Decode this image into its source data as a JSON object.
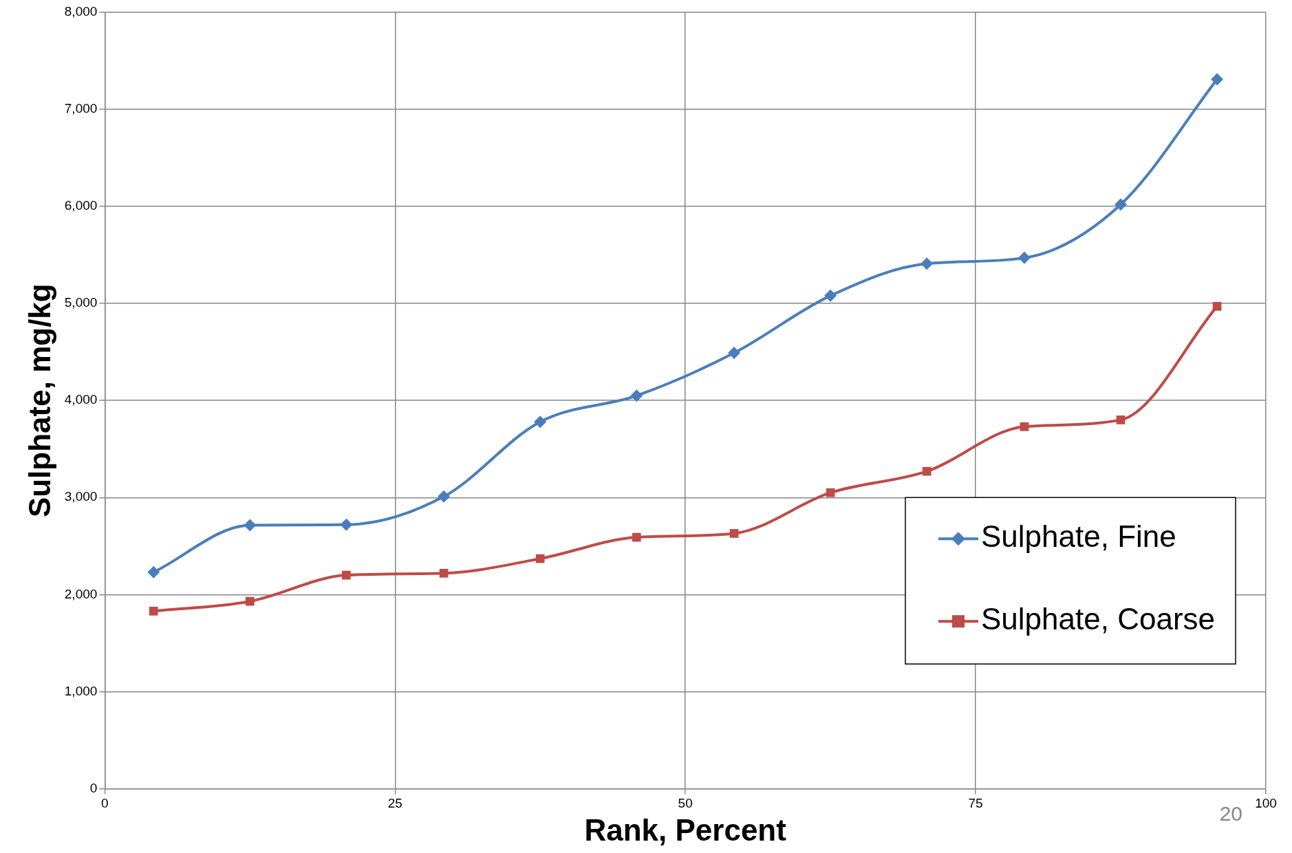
{
  "chart_data": {
    "type": "line",
    "xlabel": "Rank, Percent",
    "ylabel": "Sulphate, mg/kg",
    "x": [
      4.2,
      12.5,
      20.8,
      29.2,
      37.5,
      45.8,
      54.2,
      62.5,
      70.8,
      79.2,
      87.5,
      95.8
    ],
    "series": [
      {
        "name": "Sulphate, Fine",
        "color": "#4a7ebb",
        "marker": "diamond",
        "values": [
          2230,
          2715,
          2720,
          3010,
          3780,
          4050,
          4490,
          5080,
          5410,
          5470,
          6020,
          7310
        ]
      },
      {
        "name": "Sulphate, Coarse",
        "color": "#be4b48",
        "marker": "square",
        "values": [
          1830,
          1930,
          2200,
          2220,
          2370,
          2590,
          2630,
          3050,
          3270,
          3730,
          3800,
          4970
        ]
      }
    ],
    "xlim": [
      0,
      100
    ],
    "xticks": [
      0,
      25,
      50,
      75,
      100
    ],
    "ylim": [
      0,
      8000
    ],
    "yticks": [
      {
        "value": 0,
        "label": "0"
      },
      {
        "value": 1000,
        "label": "1,000"
      },
      {
        "value": 2000,
        "label": "2,000"
      },
      {
        "value": 3000,
        "label": "3,000"
      },
      {
        "value": 4000,
        "label": "4,000"
      },
      {
        "value": 5000,
        "label": "5,000"
      },
      {
        "value": 6000,
        "label": "6,000"
      },
      {
        "value": 7000,
        "label": "7,000"
      },
      {
        "value": 8000,
        "label": "8,000"
      }
    ],
    "grid": true,
    "legend": "right",
    "line_style": "solid",
    "annotations": [
      "20"
    ]
  }
}
